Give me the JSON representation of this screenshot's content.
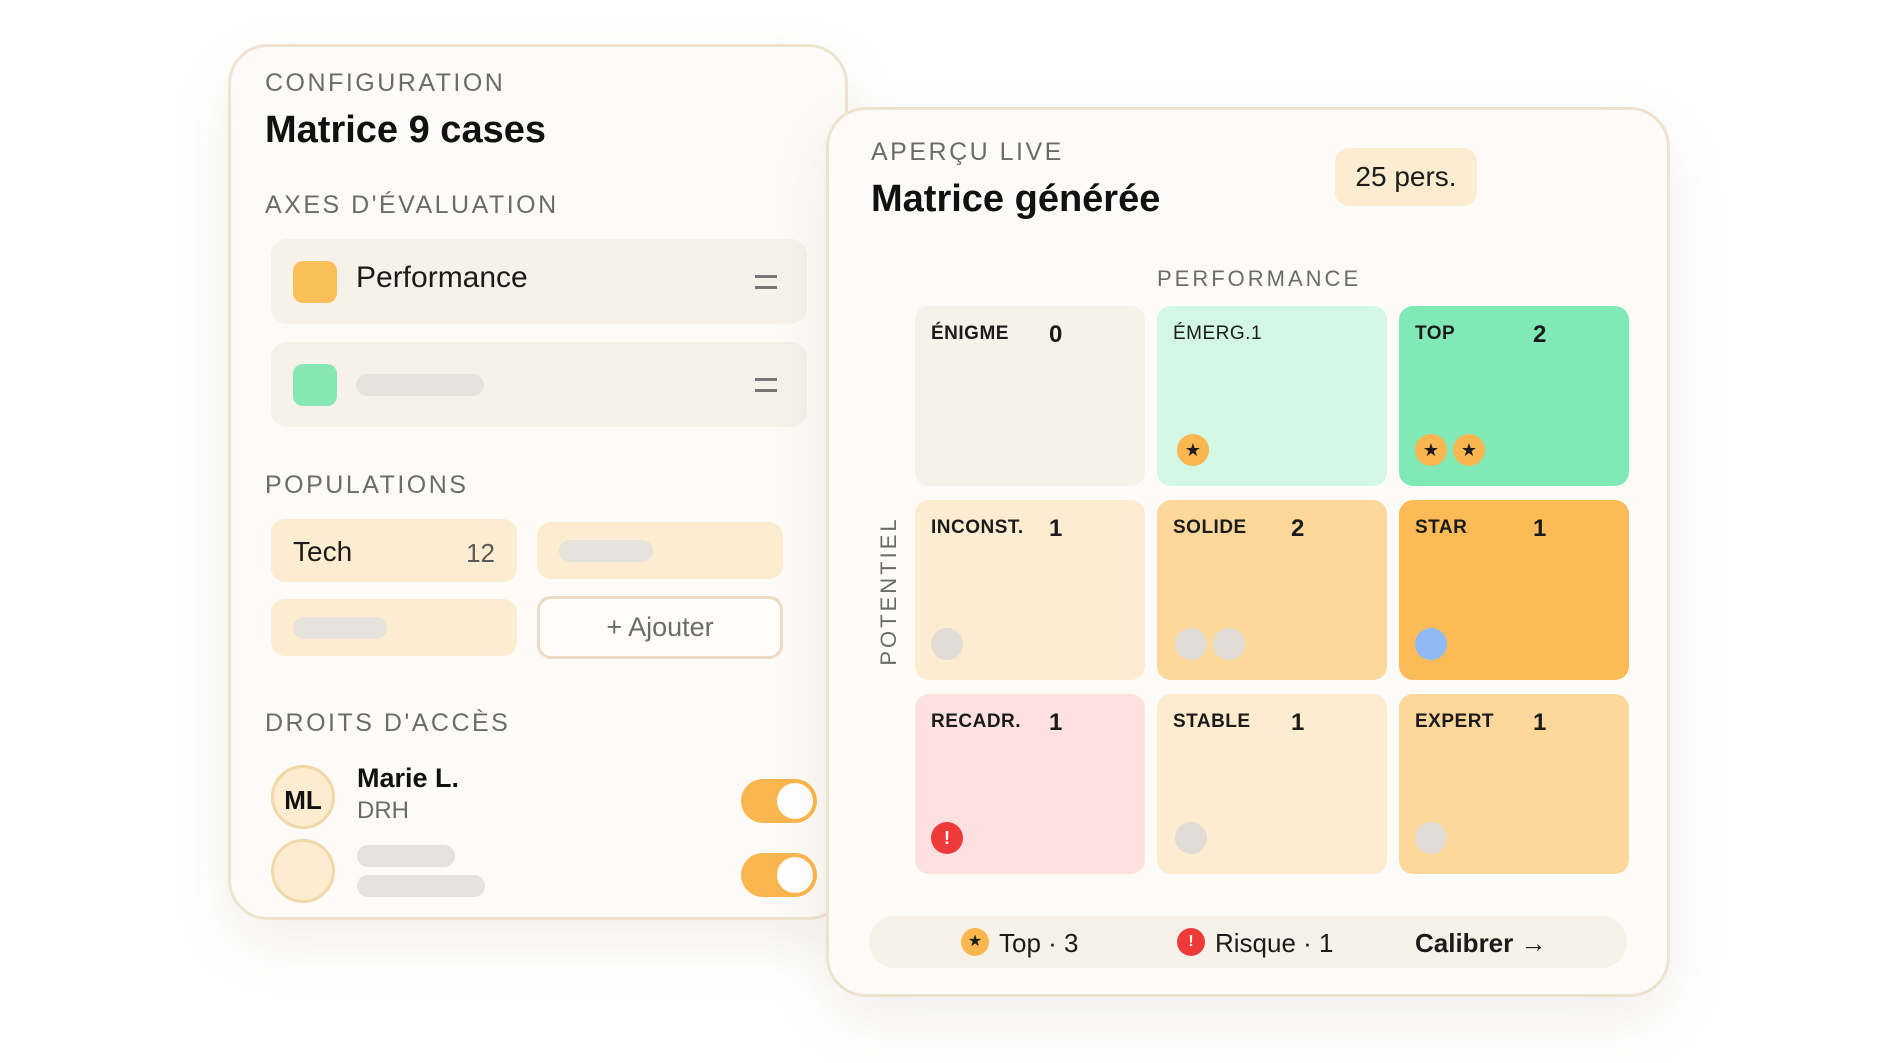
{
  "config": {
    "eyebrow": "CONFIGURATION",
    "title": "Matrice 9 cases",
    "axes_heading": "AXES D'ÉVALUATION",
    "axes": [
      {
        "label": "Performance",
        "color": "#fbbf5a"
      },
      {
        "label": "",
        "color": "#86e6b4"
      }
    ],
    "populations_heading": "POPULATIONS",
    "populations": [
      {
        "name": "Tech",
        "count": "12"
      }
    ],
    "add_label": "+ Ajouter",
    "access_heading": "DROITS D'ACCÈS",
    "users": [
      {
        "initials": "ML",
        "name": "Marie L.",
        "role": "DRH",
        "enabled": true
      },
      {
        "initials": "",
        "name": "",
        "role": "",
        "enabled": true
      }
    ]
  },
  "preview": {
    "eyebrow": "APERÇU LIVE",
    "title": "Matrice générée",
    "headcount": "25 pers.",
    "x_axis": "PERFORMANCE",
    "y_axis": "POTENTIEL",
    "cells": [
      {
        "label": "ÉNIGME",
        "count": "0",
        "color": "#f6f1e9"
      },
      {
        "label": "ÉMERG.1",
        "count": "",
        "color": "#d2f7e4"
      },
      {
        "label": "TOP",
        "count": "2",
        "color": "#80e9b6"
      },
      {
        "label": "INCONST.",
        "count": "1",
        "color": "#fdeccf"
      },
      {
        "label": "SOLIDE",
        "count": "2",
        "color": "#fed79b"
      },
      {
        "label": "STAR",
        "count": "1",
        "color": "#fdbb57"
      },
      {
        "label": "RECADR.",
        "count": "1",
        "color": "#fde0e0"
      },
      {
        "label": "STABLE",
        "count": "1",
        "color": "#fdeccf"
      },
      {
        "label": "EXPERT",
        "count": "1",
        "color": "#fed79b"
      }
    ],
    "footer": {
      "top_label": "Top · 3",
      "risk_label": "Risque · 1",
      "calibrate_label": "Calibrer →"
    }
  }
}
